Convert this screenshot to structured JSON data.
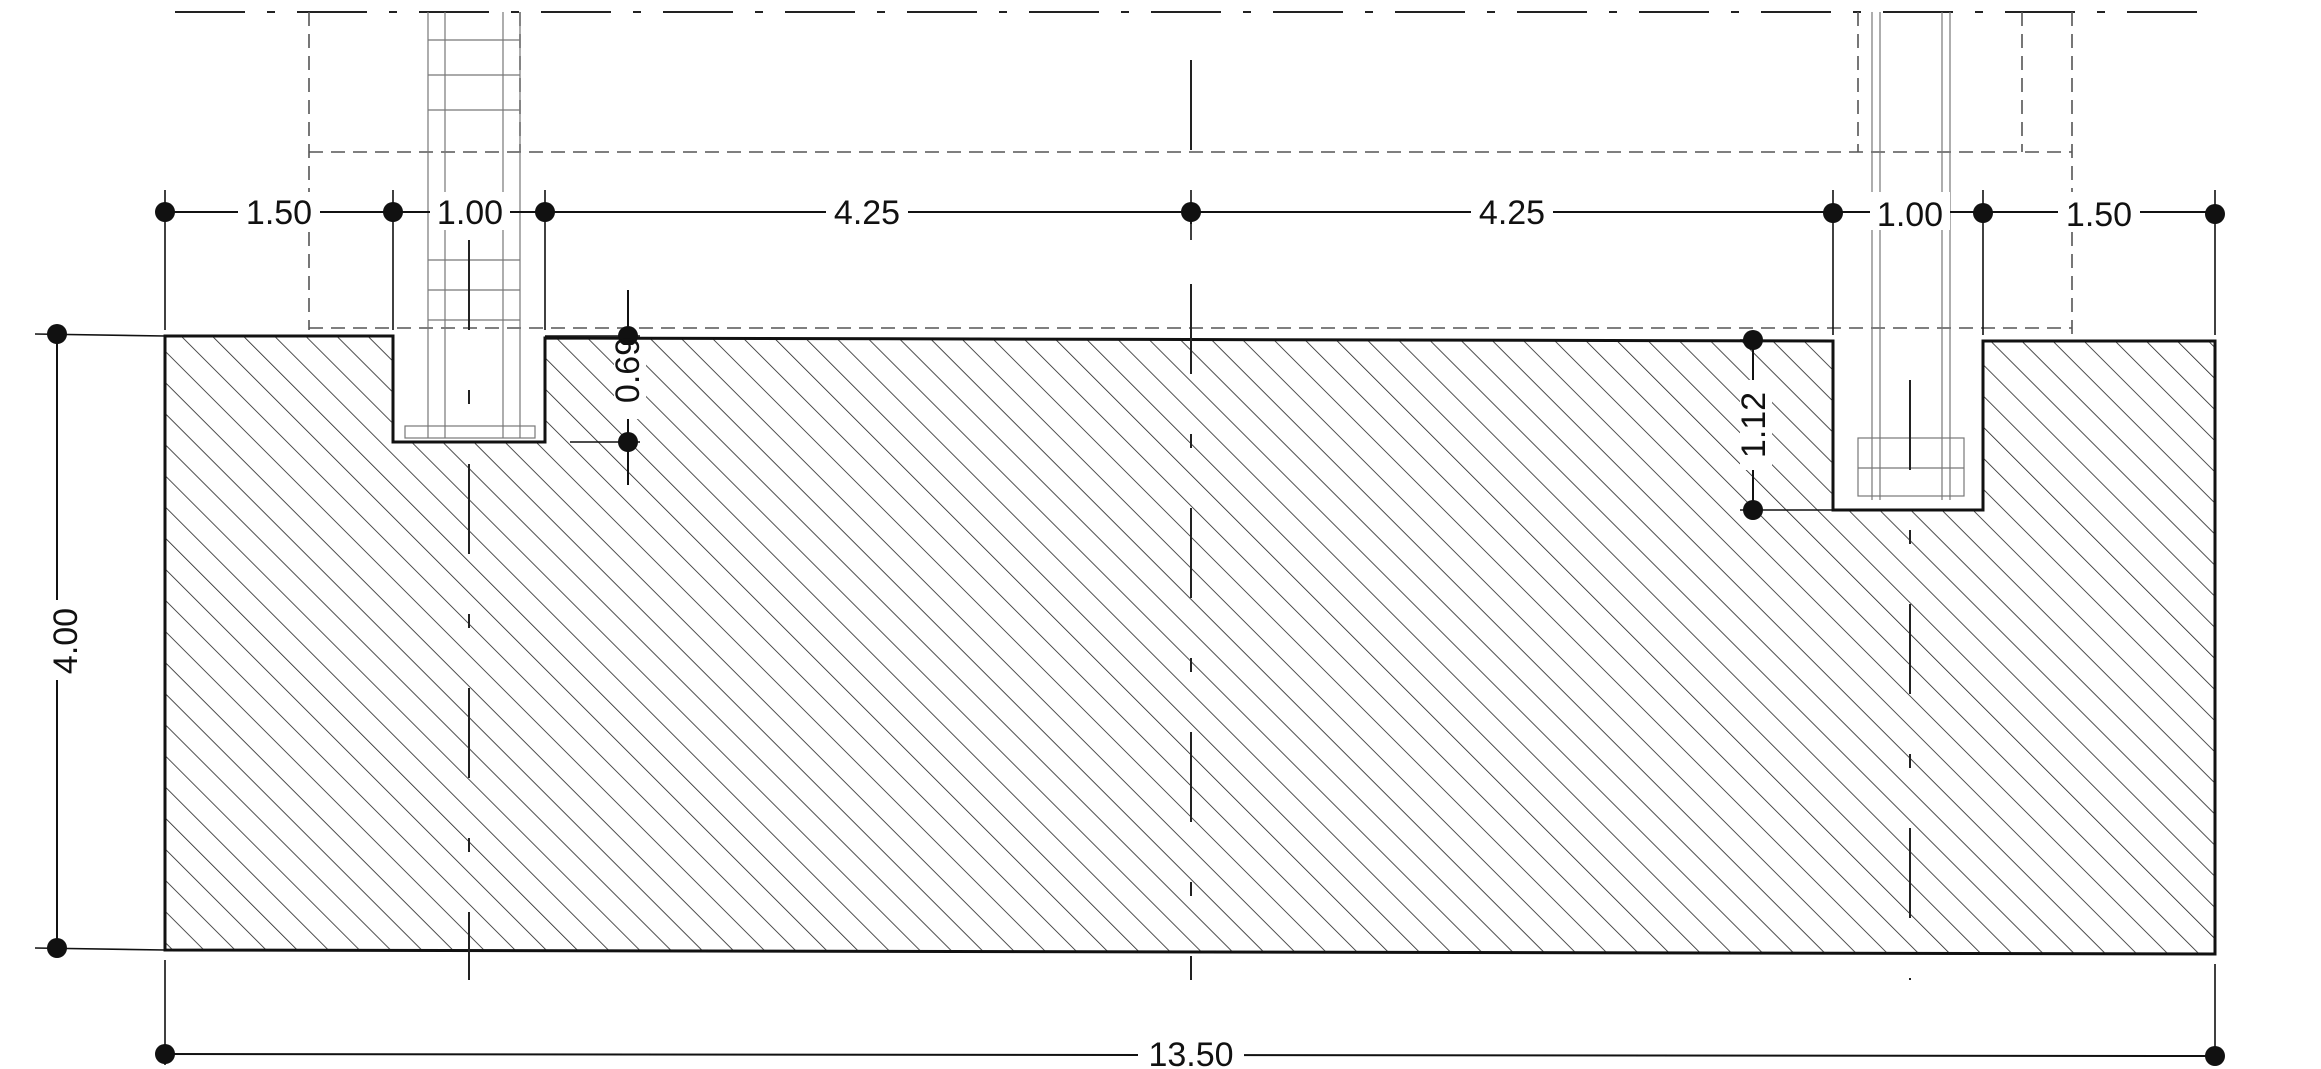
{
  "dimensions": {
    "top": [
      "1.50",
      "1.00",
      "4.25",
      "4.25",
      "1.00",
      "1.50"
    ],
    "overall_width": "13.50",
    "height": "4.00",
    "left_pocket_depth": "0.69",
    "right_pocket_depth": "1.12"
  },
  "colors": {
    "line": "#111111",
    "hatch": "#222222",
    "hidden": "#555555"
  }
}
